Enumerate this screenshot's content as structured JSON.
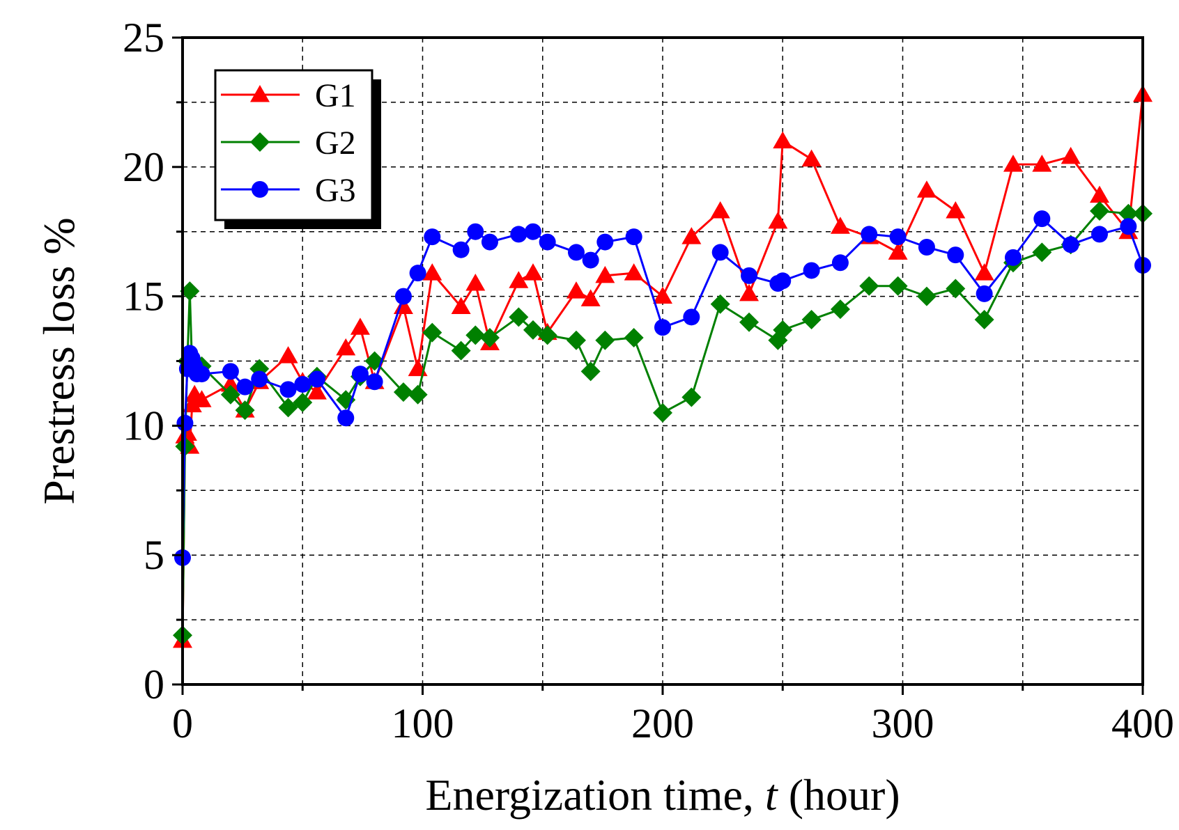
{
  "chart_data": {
    "type": "line",
    "title": "",
    "xlabel_main": "Energization time, ",
    "xlabel_var": "t",
    "xlabel_unit": " (hour)",
    "ylabel": "Prestress loss %",
    "xlim": [
      0,
      400
    ],
    "ylim": [
      0,
      25
    ],
    "xticks": [
      0,
      100,
      200,
      300,
      400
    ],
    "xtick_labels": [
      "0",
      "100",
      "200",
      "300",
      "400"
    ],
    "yticks": [
      0,
      5,
      10,
      15,
      20,
      25
    ],
    "ytick_labels": [
      "0",
      "5",
      "10",
      "15",
      "20",
      "25"
    ],
    "grid": true,
    "legend_position": "top-left",
    "series": [
      {
        "name": "G1",
        "color": "#ff0000",
        "marker": "triangle",
        "x": [
          0,
          1,
          2,
          3,
          4,
          5,
          6,
          8,
          20,
          26,
          32,
          44,
          50,
          56,
          68,
          74,
          80,
          92,
          98,
          104,
          116,
          122,
          128,
          140,
          146,
          152,
          164,
          170,
          176,
          188,
          200,
          212,
          224,
          236,
          248,
          250,
          262,
          274,
          286,
          298,
          310,
          322,
          334,
          346,
          358,
          370,
          382,
          394,
          400
        ],
        "y": [
          1.7,
          9.6,
          9.7,
          9.2,
          10.8,
          11.2,
          11.0,
          11.0,
          11.6,
          10.6,
          11.7,
          12.7,
          11.7,
          11.3,
          13.0,
          13.8,
          11.7,
          14.6,
          12.2,
          15.9,
          14.6,
          15.5,
          13.2,
          15.6,
          15.9,
          13.6,
          15.2,
          14.9,
          15.8,
          15.9,
          15.0,
          17.3,
          18.3,
          15.1,
          17.9,
          21.0,
          20.3,
          17.7,
          17.3,
          16.7,
          19.1,
          18.3,
          15.9,
          20.1,
          20.1,
          20.4,
          18.9,
          17.5,
          22.8
        ]
      },
      {
        "name": "G2",
        "color": "#008000",
        "marker": "diamond",
        "x": [
          0,
          1,
          2,
          3,
          4,
          5,
          6,
          8,
          20,
          26,
          32,
          44,
          50,
          56,
          68,
          74,
          80,
          92,
          98,
          104,
          116,
          122,
          128,
          140,
          146,
          152,
          164,
          170,
          176,
          188,
          200,
          212,
          224,
          236,
          248,
          250,
          262,
          274,
          286,
          298,
          310,
          322,
          334,
          346,
          358,
          370,
          382,
          394,
          400
        ],
        "y": [
          1.9,
          9.2,
          12.5,
          15.2,
          12.2,
          12.3,
          12.4,
          12.3,
          11.2,
          10.6,
          12.2,
          10.7,
          10.9,
          11.9,
          11.0,
          11.9,
          12.5,
          11.3,
          11.2,
          13.6,
          12.9,
          13.5,
          13.4,
          14.2,
          13.7,
          13.5,
          13.3,
          12.1,
          13.3,
          13.4,
          10.5,
          11.1,
          14.7,
          14.0,
          13.3,
          13.7,
          14.1,
          14.5,
          15.4,
          15.4,
          15.0,
          15.3,
          14.1,
          16.3,
          16.7,
          17.0,
          18.3,
          18.2,
          18.2
        ]
      },
      {
        "name": "G3",
        "color": "#0000ff",
        "marker": "circle",
        "x": [
          0,
          1,
          2,
          3,
          4,
          5,
          6,
          8,
          20,
          26,
          32,
          44,
          50,
          56,
          68,
          74,
          80,
          92,
          98,
          104,
          116,
          122,
          128,
          140,
          146,
          152,
          164,
          170,
          176,
          188,
          200,
          212,
          224,
          236,
          248,
          250,
          262,
          274,
          286,
          298,
          310,
          322,
          334,
          346,
          358,
          370,
          382,
          394,
          400
        ],
        "y": [
          4.9,
          10.1,
          12.2,
          12.8,
          12.6,
          12.3,
          12.0,
          12.0,
          12.1,
          11.5,
          11.8,
          11.4,
          11.6,
          11.8,
          10.3,
          12.0,
          11.7,
          15.0,
          15.9,
          17.3,
          16.8,
          17.5,
          17.1,
          17.4,
          17.5,
          17.1,
          16.7,
          16.4,
          17.1,
          17.3,
          13.8,
          14.2,
          16.7,
          15.8,
          15.5,
          15.6,
          16.0,
          16.3,
          17.4,
          17.3,
          16.9,
          16.6,
          15.1,
          16.5,
          18.0,
          17.0,
          17.4,
          17.7,
          16.2
        ]
      }
    ]
  }
}
